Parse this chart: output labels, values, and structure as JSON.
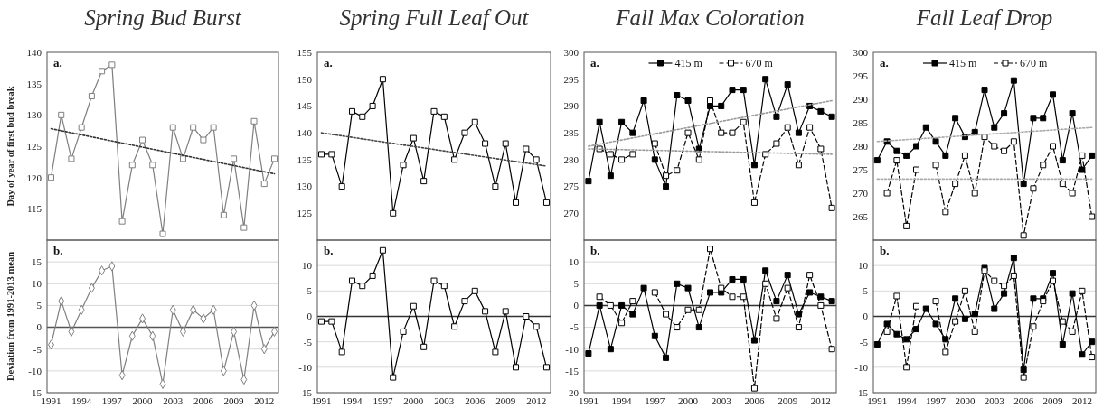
{
  "chart_data": [
    {
      "type": "line",
      "title": "Spring Bud Burst",
      "ylabel": "Day of year of first bud break",
      "annotations": [
        "a."
      ],
      "xlim": [
        1990.6,
        2013.4
      ],
      "ylim": [
        110,
        140
      ],
      "yticks": [
        115,
        120,
        125,
        130,
        135,
        140
      ],
      "tick_labels": "y",
      "x": [
        1991,
        1992,
        1993,
        1994,
        1995,
        1996,
        1997,
        1998,
        1999,
        2000,
        2001,
        2002,
        2003,
        2004,
        2005,
        2006,
        2007,
        2008,
        2009,
        2010,
        2011,
        2012,
        2013
      ],
      "series": [
        {
          "color": "#7f7f7f",
          "marker": "square",
          "line_style": "solid",
          "values": [
            120,
            130,
            123,
            128,
            133,
            137,
            138,
            113,
            122,
            126,
            122,
            111,
            128,
            123,
            128,
            126,
            128,
            114,
            123,
            112,
            129,
            119,
            123
          ]
        },
        {
          "color": "#333333",
          "marker": "none",
          "line_style": "dotted",
          "values": [
            127.8,
            null,
            null,
            null,
            null,
            null,
            null,
            null,
            null,
            null,
            null,
            null,
            null,
            null,
            null,
            null,
            null,
            null,
            null,
            null,
            null,
            null,
            120.6
          ]
        }
      ]
    },
    {
      "type": "line",
      "title": "Spring Full Leaf Out",
      "annotations": [
        "a."
      ],
      "xlim": [
        1990.6,
        2013.4
      ],
      "ylim": [
        120,
        155
      ],
      "yticks": [
        125,
        130,
        135,
        140,
        145,
        150,
        155
      ],
      "tick_labels": "y",
      "x": [
        1991,
        1992,
        1993,
        1994,
        1995,
        1996,
        1997,
        1998,
        1999,
        2000,
        2001,
        2002,
        2003,
        2004,
        2005,
        2006,
        2007,
        2008,
        2009,
        2010,
        2011,
        2012,
        2013
      ],
      "series": [
        {
          "color": "#000000",
          "marker": "square",
          "line_style": "solid",
          "values": [
            136,
            136,
            130,
            144,
            143,
            145,
            150,
            125,
            134,
            139,
            131,
            144,
            143,
            135,
            140,
            142,
            138,
            130,
            138,
            127,
            137,
            135,
            127
          ]
        },
        {
          "color": "#444444",
          "marker": "none",
          "line_style": "dotted",
          "values": [
            140,
            null,
            null,
            null,
            null,
            null,
            null,
            null,
            null,
            null,
            null,
            null,
            null,
            null,
            null,
            null,
            null,
            null,
            null,
            null,
            null,
            null,
            133.8
          ]
        }
      ]
    },
    {
      "type": "line",
      "title": "Fall Max Coloration",
      "annotations": [
        "a."
      ],
      "legend": "top",
      "xlim": [
        1990.6,
        2013.4
      ],
      "ylim": [
        265,
        300
      ],
      "yticks": [
        270,
        275,
        280,
        285,
        290,
        295,
        300
      ],
      "tick_labels": "y",
      "x": [
        1991,
        1992,
        1993,
        1994,
        1995,
        1996,
        1997,
        1998,
        1999,
        2000,
        2001,
        2002,
        2003,
        2004,
        2005,
        2006,
        2007,
        2008,
        2009,
        2010,
        2011,
        2012,
        2013
      ],
      "series": [
        {
          "name": "415 m",
          "color": "#000000",
          "marker": "square",
          "line_style": "solid",
          "values": [
            276,
            287,
            277,
            287,
            285,
            291,
            280,
            275,
            292,
            291,
            282,
            290,
            290,
            293,
            293,
            279,
            295,
            288,
            294,
            285,
            290,
            289,
            288
          ]
        },
        {
          "name": "670 m",
          "color": "#000000",
          "marker": "square",
          "line_style": "dashed",
          "values": [
            null,
            282,
            281,
            280,
            281,
            null,
            283,
            277,
            278,
            285,
            280,
            291,
            285,
            285,
            287,
            272,
            281,
            283,
            286,
            279,
            286,
            282,
            271
          ]
        },
        {
          "color": "#999999",
          "marker": "none",
          "line_style": "dotted",
          "values": [
            282.5,
            null,
            null,
            null,
            null,
            null,
            null,
            null,
            null,
            null,
            null,
            null,
            null,
            null,
            null,
            null,
            null,
            null,
            null,
            null,
            null,
            null,
            291
          ]
        },
        {
          "color": "#999999",
          "marker": "none",
          "line_style": "dotted",
          "values": [
            282,
            null,
            null,
            null,
            null,
            null,
            null,
            null,
            null,
            null,
            null,
            null,
            null,
            null,
            null,
            null,
            null,
            null,
            null,
            null,
            null,
            null,
            281
          ]
        }
      ]
    },
    {
      "type": "line",
      "title": "Fall Leaf Drop",
      "annotations": [
        "a."
      ],
      "legend": "top",
      "xlim": [
        1990.6,
        2013.4
      ],
      "ylim": [
        260,
        300
      ],
      "yticks": [
        265,
        270,
        275,
        280,
        285,
        290,
        295,
        300
      ],
      "tick_labels": "y",
      "x": [
        1991,
        1992,
        1993,
        1994,
        1995,
        1996,
        1997,
        1998,
        1999,
        2000,
        2001,
        2002,
        2003,
        2004,
        2005,
        2006,
        2007,
        2008,
        2009,
        2010,
        2011,
        2012,
        2013
      ],
      "series": [
        {
          "name": "415 m",
          "color": "#000000",
          "marker": "square",
          "line_style": "solid",
          "values": [
            277,
            281,
            279,
            278,
            280,
            284,
            281,
            278,
            286,
            282,
            283,
            292,
            284,
            287,
            294,
            272,
            286,
            286,
            291,
            277,
            287,
            275,
            278
          ]
        },
        {
          "name": "670 m",
          "color": "#000000",
          "marker": "square",
          "line_style": "dashed",
          "values": [
            null,
            270,
            277,
            263,
            275,
            null,
            276,
            266,
            272,
            278,
            270,
            282,
            280,
            279,
            281,
            261,
            271,
            276,
            280,
            272,
            270,
            278,
            265
          ]
        },
        {
          "color": "#aaaaaa",
          "marker": "none",
          "line_style": "dotted",
          "values": [
            281,
            null,
            null,
            null,
            null,
            null,
            null,
            null,
            null,
            null,
            null,
            null,
            null,
            null,
            null,
            null,
            null,
            null,
            null,
            null,
            null,
            null,
            284
          ]
        },
        {
          "color": "#aaaaaa",
          "marker": "none",
          "line_style": "dotted",
          "values": [
            273,
            null,
            null,
            null,
            null,
            null,
            null,
            null,
            null,
            null,
            null,
            null,
            null,
            null,
            null,
            null,
            null,
            null,
            null,
            null,
            null,
            null,
            273
          ]
        }
      ]
    },
    {
      "type": "line",
      "ylabel": "Deviation from 1991-2013 mean",
      "annotations": [
        "b."
      ],
      "grid": "y",
      "ref_lines": [
        {
          "axis": "y",
          "value": 0,
          "color": "#555555"
        }
      ],
      "xlim": [
        1990.6,
        2013.4
      ],
      "xticks": [
        1991,
        1994,
        1997,
        2000,
        2003,
        2006,
        2009,
        2012
      ],
      "ylim": [
        -15,
        20
      ],
      "yticks": [
        -15,
        -10,
        -5,
        0,
        5,
        10,
        15
      ],
      "x": [
        1991,
        1992,
        1993,
        1994,
        1995,
        1996,
        1997,
        1998,
        1999,
        2000,
        2001,
        2002,
        2003,
        2004,
        2005,
        2006,
        2007,
        2008,
        2009,
        2010,
        2011,
        2012,
        2013
      ],
      "series": [
        {
          "color": "#7f7f7f",
          "marker": "diamond",
          "line_style": "solid",
          "values": [
            -4,
            6,
            -1,
            4,
            9,
            13,
            14,
            -11,
            -2,
            2,
            -2,
            -13,
            4,
            -1,
            4,
            2,
            4,
            -10,
            -1,
            -12,
            5,
            -5,
            -1
          ]
        }
      ]
    },
    {
      "type": "line",
      "annotations": [
        "b."
      ],
      "grid": "y",
      "ref_lines": [
        {
          "axis": "y",
          "value": 0,
          "color": "#333333"
        }
      ],
      "xlim": [
        1990.6,
        2013.4
      ],
      "xticks": [
        1991,
        1994,
        1997,
        2000,
        2003,
        2006,
        2009,
        2012
      ],
      "ylim": [
        -15,
        15
      ],
      "yticks": [
        -15,
        -10,
        -5,
        0,
        5,
        10
      ],
      "x": [
        1991,
        1992,
        1993,
        1994,
        1995,
        1996,
        1997,
        1998,
        1999,
        2000,
        2001,
        2002,
        2003,
        2004,
        2005,
        2006,
        2007,
        2008,
        2009,
        2010,
        2011,
        2012,
        2013
      ],
      "series": [
        {
          "color": "#000000",
          "marker": "square",
          "line_style": "solid",
          "values": [
            -1,
            -1,
            -7,
            7,
            6,
            8,
            13,
            -12,
            -3,
            2,
            -6,
            7,
            6,
            -2,
            3,
            5,
            1,
            -7,
            1,
            -10,
            0,
            -2,
            -10
          ]
        }
      ]
    },
    {
      "type": "line",
      "annotations": [
        "b."
      ],
      "grid": "y",
      "ref_lines": [
        {
          "axis": "y",
          "value": 0,
          "color": "#333333"
        }
      ],
      "xlim": [
        1990.6,
        2013.4
      ],
      "xticks": [
        1991,
        1994,
        1997,
        2000,
        2003,
        2006,
        2009,
        2012
      ],
      "ylim": [
        -20,
        15
      ],
      "yticks": [
        -20,
        -15,
        -10,
        -5,
        0,
        5,
        10
      ],
      "x": [
        1991,
        1992,
        1993,
        1994,
        1995,
        1996,
        1997,
        1998,
        1999,
        2000,
        2001,
        2002,
        2003,
        2004,
        2005,
        2006,
        2007,
        2008,
        2009,
        2010,
        2011,
        2012,
        2013
      ],
      "series": [
        {
          "color": "#000000",
          "marker": "square",
          "line_style": "solid",
          "values": [
            -11,
            0,
            -10,
            0,
            -2,
            4,
            -7,
            -12,
            5,
            4,
            -5,
            3,
            3,
            6,
            6,
            -8,
            8,
            1,
            7,
            -2,
            3,
            2,
            1
          ]
        },
        {
          "color": "#000000",
          "marker": "square",
          "line_style": "dashed",
          "values": [
            null,
            2,
            0,
            -4,
            1,
            null,
            3,
            -2,
            -5,
            -1,
            -1,
            13,
            4,
            2,
            2,
            -19,
            5,
            -3,
            4,
            -5,
            7,
            0,
            -10
          ]
        }
      ]
    },
    {
      "type": "line",
      "annotations": [
        "b."
      ],
      "grid": "y",
      "ref_lines": [
        {
          "axis": "y",
          "value": 0,
          "color": "#333333"
        }
      ],
      "xlim": [
        1990.6,
        2013.4
      ],
      "xticks": [
        1991,
        1994,
        1997,
        2000,
        2003,
        2006,
        2009,
        2012
      ],
      "ylim": [
        -15,
        15
      ],
      "yticks": [
        -15,
        -10,
        -5,
        0,
        5,
        10
      ],
      "x": [
        1991,
        1992,
        1993,
        1994,
        1995,
        1996,
        1997,
        1998,
        1999,
        2000,
        2001,
        2002,
        2003,
        2004,
        2005,
        2006,
        2007,
        2008,
        2009,
        2010,
        2011,
        2012,
        2013
      ],
      "series": [
        {
          "color": "#000000",
          "marker": "square",
          "line_style": "solid",
          "values": [
            -5.5,
            -1.5,
            -3.5,
            -4.5,
            -2.5,
            1.5,
            -1.5,
            -4.5,
            3.5,
            -0.5,
            0.5,
            9.5,
            1.5,
            4.5,
            11.5,
            -10.5,
            3.5,
            3.5,
            8.5,
            -5.5,
            4.5,
            -7.5,
            -5
          ]
        },
        {
          "color": "#000000",
          "marker": "square",
          "line_style": "dashed",
          "values": [
            null,
            -3,
            4,
            -10,
            2,
            null,
            3,
            -7,
            -1,
            5,
            -3,
            9,
            7,
            6,
            8,
            -12,
            -2,
            3,
            7,
            -1,
            -3,
            5,
            -8
          ]
        }
      ]
    }
  ]
}
